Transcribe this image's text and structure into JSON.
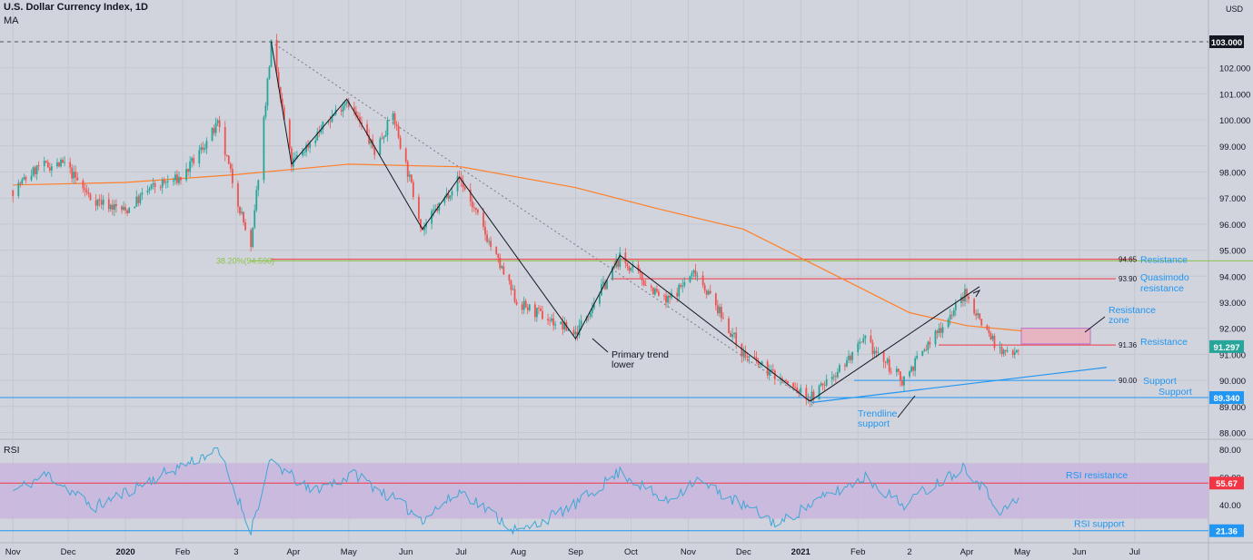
{
  "header": {
    "symbol": "U.S. Dollar Currency Index, 1D",
    "indicator": "MA"
  },
  "currency_label": "USD",
  "chart_data": [
    {
      "type": "candlestick",
      "title": "U.S. Dollar Currency Index, 1D",
      "ylim": [
        88.0,
        103.6
      ],
      "y_ticks": [
        88.0,
        89.0,
        90.0,
        91.0,
        92.0,
        93.0,
        94.0,
        95.0,
        96.0,
        97.0,
        98.0,
        99.0,
        100.0,
        101.0,
        102.0,
        103.0
      ],
      "x_tick_labels": [
        "Nov",
        "Dec",
        "2020",
        "Feb",
        "3",
        "Apr",
        "May",
        "Jun",
        "Jul",
        "Aug",
        "Sep",
        "Oct",
        "Nov",
        "Dec",
        "2021",
        "Feb",
        "2",
        "Apr",
        "May",
        "Jun",
        "Jul"
      ],
      "grid": true,
      "price_path": [
        [
          "2019-11-01",
          97.3
        ],
        [
          "2019-11-15",
          98.2
        ],
        [
          "2019-11-29",
          98.3
        ],
        [
          "2019-12-13",
          97.0
        ],
        [
          "2020-01-01",
          96.5
        ],
        [
          "2020-01-15",
          97.4
        ],
        [
          "2020-02-01",
          97.8
        ],
        [
          "2020-02-20",
          99.8
        ],
        [
          "2020-03-09",
          95.0
        ],
        [
          "2020-03-20",
          102.9
        ],
        [
          "2020-03-31",
          98.3
        ],
        [
          "2020-04-30",
          100.8
        ],
        [
          "2020-05-15",
          98.8
        ],
        [
          "2020-05-25",
          100.2
        ],
        [
          "2020-06-10",
          95.8
        ],
        [
          "2020-06-30",
          97.8
        ],
        [
          "2020-07-31",
          93.0
        ],
        [
          "2020-09-01",
          91.8
        ],
        [
          "2020-09-25",
          94.7
        ],
        [
          "2020-10-20",
          93.0
        ],
        [
          "2020-11-05",
          94.2
        ],
        [
          "2020-12-01",
          91.0
        ],
        [
          "2021-01-06",
          89.3
        ],
        [
          "2021-02-05",
          91.5
        ],
        [
          "2021-02-25",
          90.0
        ],
        [
          "2021-03-31",
          93.3
        ],
        [
          "2021-04-20",
          91.0
        ],
        [
          "2021-04-29",
          91.3
        ]
      ],
      "moving_average": [
        [
          "2019-11-01",
          97.5
        ],
        [
          "2020-01-01",
          97.6
        ],
        [
          "2020-03-01",
          97.9
        ],
        [
          "2020-05-01",
          98.3
        ],
        [
          "2020-07-01",
          98.2
        ],
        [
          "2020-09-01",
          97.4
        ],
        [
          "2020-10-15",
          96.6
        ],
        [
          "2020-12-01",
          95.8
        ],
        [
          "2021-01-01",
          94.7
        ],
        [
          "2021-02-01",
          93.6
        ],
        [
          "2021-03-01",
          92.6
        ],
        [
          "2021-04-01",
          92.1
        ],
        [
          "2021-05-01",
          91.9
        ]
      ],
      "current_price": 91.297,
      "price_labels": {
        "top": "103.000",
        "current": "91.297",
        "support": "89.340"
      },
      "horizontal_levels": [
        {
          "value": 94.65,
          "value_label": "94.65",
          "text": "Resistance",
          "color": "#f23645"
        },
        {
          "value": 93.9,
          "value_label": "93.90",
          "text": "Quasimodo resistance",
          "color": "#f23645"
        },
        {
          "value": 91.36,
          "value_label": "91.36",
          "text": "Resistance",
          "color": "#f23645"
        },
        {
          "value": 90.0,
          "value_label": "90.00",
          "text": "Support",
          "color": "#2196f3"
        },
        {
          "value": 89.34,
          "value_label": "",
          "text": "Support",
          "color": "#2196f3"
        },
        {
          "value": 103.0,
          "value_label": "",
          "text": "",
          "color": "#131722"
        }
      ],
      "fib_label": "38.20%(94.590)",
      "fib_value": 94.59,
      "resistance_zone": {
        "from": 91.4,
        "to": 92.0,
        "label": "Resistance zone"
      },
      "annotations": {
        "primary_trend": "Primary trend lower",
        "trendline": "Trendline support"
      }
    },
    {
      "type": "line",
      "title": "RSI",
      "ylim": [
        13,
        82
      ],
      "y_ticks": [
        80.0,
        60.0,
        40.0
      ],
      "band": [
        30,
        70
      ],
      "levels": [
        {
          "value": 55.67,
          "label": "55.67",
          "text": "RSI resistance",
          "color": "#f23645"
        },
        {
          "value": 21.36,
          "label": "21.36",
          "text": "RSI support",
          "color": "#2196f3"
        }
      ],
      "rsi_path": [
        [
          "2019-11-01",
          50
        ],
        [
          "2019-11-20",
          62
        ],
        [
          "2019-12-15",
          38
        ],
        [
          "2020-01-10",
          55
        ],
        [
          "2020-02-20",
          80
        ],
        [
          "2020-03-09",
          22
        ],
        [
          "2020-03-20",
          72
        ],
        [
          "2020-04-10",
          50
        ],
        [
          "2020-05-05",
          62
        ],
        [
          "2020-06-10",
          30
        ],
        [
          "2020-07-01",
          50
        ],
        [
          "2020-08-01",
          20
        ],
        [
          "2020-09-01",
          40
        ],
        [
          "2020-09-25",
          64
        ],
        [
          "2020-10-20",
          42
        ],
        [
          "2020-11-05",
          58
        ],
        [
          "2020-12-20",
          26
        ],
        [
          "2021-01-06",
          40
        ],
        [
          "2021-02-05",
          60
        ],
        [
          "2021-02-25",
          40
        ],
        [
          "2021-03-31",
          68
        ],
        [
          "2021-04-20",
          35
        ],
        [
          "2021-04-29",
          44
        ]
      ]
    }
  ]
}
